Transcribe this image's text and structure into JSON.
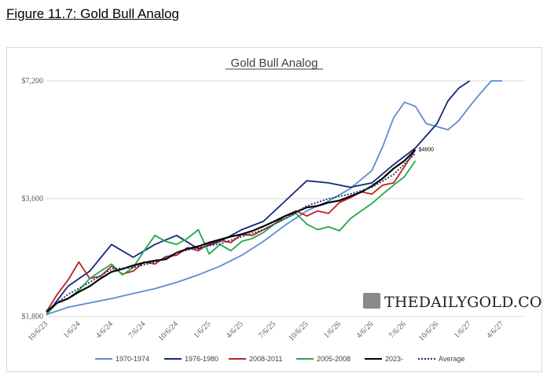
{
  "figure_title": "Figure 11.7: Gold Bull Analog",
  "brand": "THEDAILYGOLD.COM",
  "end_label": "$4800",
  "chart_data": {
    "type": "line",
    "title": "Gold Bull Analog",
    "xlabel": "",
    "ylabel": "",
    "y_ticks": [
      1800,
      3600,
      7200
    ],
    "y_tick_labels": [
      "$1,800",
      "$3,600",
      "$7,200"
    ],
    "y_scale": "log",
    "ylim": [
      1800,
      7200
    ],
    "x_tick_labels": [
      "10/6/23",
      "1/6/24",
      "4/6/24",
      "7/6/24",
      "10/6/24",
      "1/6/25",
      "4/6/25",
      "7/6/25",
      "10/6/25",
      "1/6/26",
      "4/6/26",
      "7/6/26",
      "10/6/26",
      "1/6/27",
      "4/6/27"
    ],
    "x_tick_months": [
      0,
      3,
      6,
      9,
      12,
      15,
      18,
      21,
      24,
      27,
      30,
      33,
      36,
      39,
      42
    ],
    "grid": "horizontal",
    "legend_position": "bottom",
    "series": [
      {
        "name": "1970-1974",
        "color": "#5b8ed0",
        "x": [
          0,
          2,
          4,
          6,
          8,
          10,
          12,
          14,
          16,
          18,
          20,
          22,
          24,
          26,
          28,
          30,
          31,
          32,
          33,
          34,
          35,
          36,
          37,
          38,
          39,
          40,
          41,
          42
        ],
        "values": [
          1820,
          1900,
          1950,
          2000,
          2060,
          2120,
          2200,
          2300,
          2420,
          2580,
          2800,
          3080,
          3350,
          3550,
          3820,
          4250,
          4900,
          5800,
          6350,
          6200,
          5600,
          5500,
          5400,
          5700,
          6200,
          6700,
          7400,
          7400
        ]
      },
      {
        "name": "1976-1980",
        "color": "#13287a",
        "x": [
          0,
          2,
          4,
          6,
          8,
          10,
          12,
          14,
          16,
          18,
          20,
          22,
          24,
          26,
          28,
          30,
          32,
          34,
          36,
          37,
          38,
          39
        ],
        "values": [
          1820,
          2150,
          2350,
          2750,
          2550,
          2750,
          2900,
          2680,
          2800,
          3000,
          3150,
          3550,
          4000,
          3950,
          3850,
          3950,
          4400,
          4850,
          5600,
          6400,
          6900,
          7200
        ]
      },
      {
        "name": "2008-2011",
        "color": "#c0211b",
        "x": [
          0,
          1,
          2,
          3,
          4,
          5,
          6,
          7,
          8,
          9,
          10,
          11,
          12,
          13,
          14,
          15,
          16,
          17,
          18,
          19,
          20,
          21,
          22,
          23,
          24,
          25,
          26,
          27,
          28,
          29,
          30,
          31,
          32,
          33,
          34
        ],
        "values": [
          1850,
          2050,
          2230,
          2480,
          2250,
          2280,
          2420,
          2310,
          2350,
          2480,
          2450,
          2560,
          2580,
          2700,
          2650,
          2760,
          2820,
          2780,
          2920,
          2900,
          3000,
          3100,
          3250,
          3350,
          3250,
          3350,
          3300,
          3520,
          3620,
          3750,
          3700,
          3900,
          3950,
          4350,
          4800
        ]
      },
      {
        "name": "2005-2008",
        "color": "#21a74a",
        "x": [
          0,
          1,
          2,
          3,
          4,
          5,
          6,
          7,
          8,
          9,
          10,
          11,
          12,
          13,
          14,
          15,
          16,
          17,
          18,
          19,
          20,
          21,
          22,
          23,
          24,
          25,
          26,
          27,
          28,
          29,
          30,
          31,
          32,
          33,
          34
        ],
        "values": [
          1820,
          1950,
          2000,
          2100,
          2250,
          2350,
          2450,
          2300,
          2400,
          2650,
          2900,
          2800,
          2750,
          2850,
          3000,
          2600,
          2750,
          2650,
          2800,
          2850,
          2950,
          3100,
          3200,
          3300,
          3100,
          3000,
          3050,
          2980,
          3200,
          3350,
          3500,
          3700,
          3900,
          4100,
          4500
        ]
      },
      {
        "name": "2023-",
        "color": "#000000",
        "x": [
          0,
          1,
          2,
          3,
          4,
          5,
          6,
          7,
          8,
          9,
          10,
          11,
          12,
          13,
          14,
          15,
          16,
          17,
          18,
          19,
          20,
          21,
          22,
          23,
          24,
          25,
          26,
          27,
          28,
          29,
          30,
          31,
          32,
          33,
          34
        ],
        "values": [
          1850,
          1950,
          2000,
          2080,
          2150,
          2250,
          2340,
          2380,
          2430,
          2470,
          2500,
          2520,
          2620,
          2680,
          2720,
          2780,
          2830,
          2880,
          2920,
          2980,
          3060,
          3150,
          3250,
          3330,
          3420,
          3450,
          3520,
          3560,
          3650,
          3740,
          3880,
          4060,
          4300,
          4500,
          4800
        ]
      },
      {
        "name": "Average",
        "color": "#1c2e6e",
        "dash": "2,2",
        "x": [
          0,
          2,
          4,
          6,
          8,
          10,
          12,
          14,
          16,
          18,
          20,
          22,
          24,
          26,
          28,
          30,
          32,
          34
        ],
        "values": [
          1860,
          2050,
          2200,
          2380,
          2400,
          2480,
          2620,
          2700,
          2760,
          2880,
          3000,
          3200,
          3450,
          3600,
          3700,
          3850,
          4150,
          4700
        ]
      }
    ]
  }
}
